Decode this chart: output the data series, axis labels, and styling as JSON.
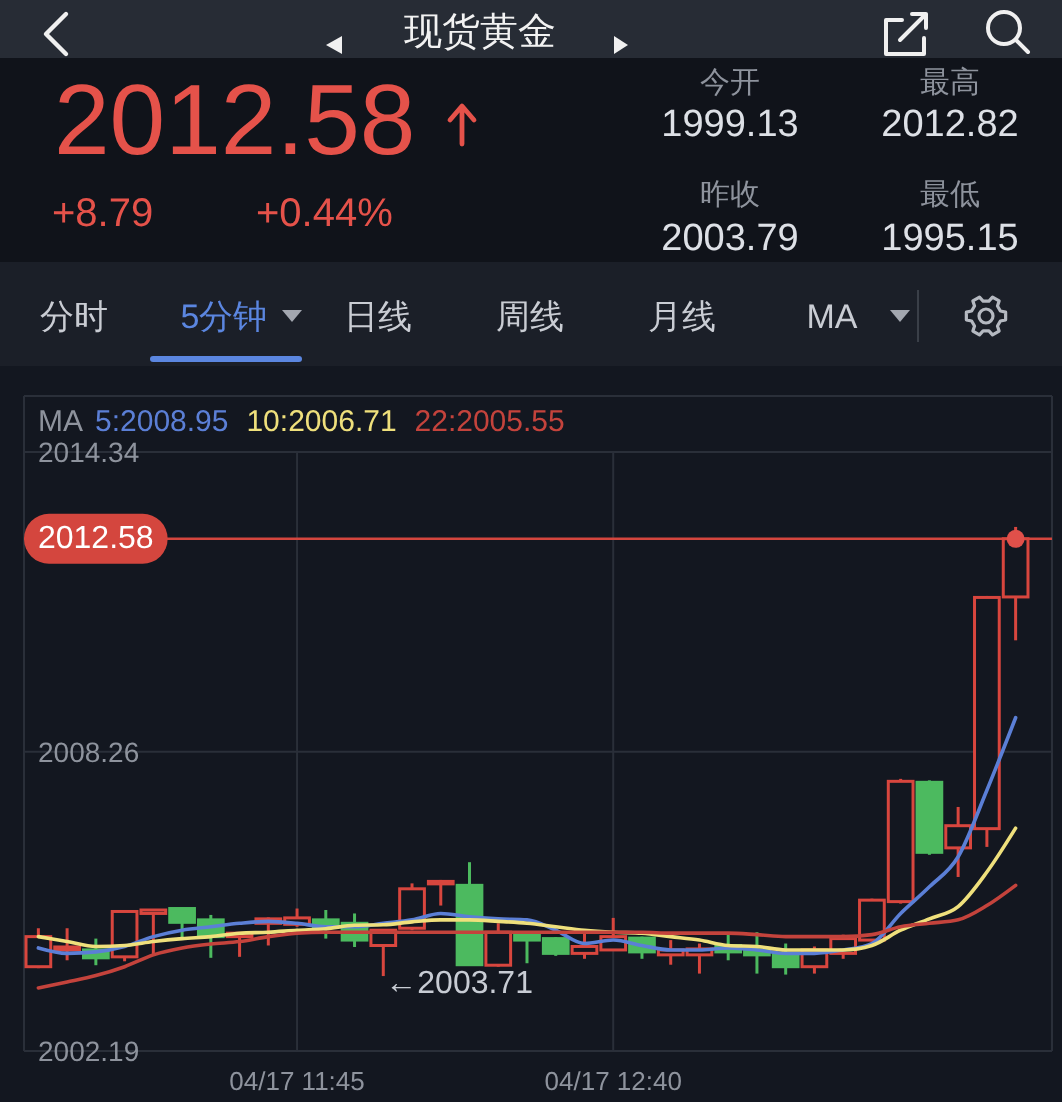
{
  "chart_data": {
    "type": "candlestick",
    "title": "现货黄金",
    "categories": [
      null,
      null,
      null,
      null,
      null,
      null,
      null,
      null,
      null,
      "04/17 11:45",
      null,
      null,
      null,
      null,
      null,
      null,
      null,
      null,
      null,
      null,
      "04/17 12:40",
      null,
      null,
      null,
      null,
      null,
      null,
      null,
      null,
      null,
      null,
      null,
      null,
      null,
      null
    ],
    "ohlc": [
      [
        2003.9,
        2004.68,
        2003.87,
        2004.51
      ],
      [
        2004.24,
        2004.68,
        2004.03,
        2004.3
      ],
      [
        2004.24,
        2004.47,
        2003.93,
        2004.08
      ],
      [
        2004.1,
        2005.05,
        2004.01,
        2005.02
      ],
      [
        2004.98,
        2005.05,
        2004.14,
        2005.05
      ],
      [
        2005.08,
        2005.1,
        2004.44,
        2004.8
      ],
      [
        2004.85,
        2004.95,
        2004.08,
        2004.51
      ],
      [
        2004.51,
        2004.58,
        2004.1,
        2004.58
      ],
      [
        2004.78,
        2004.9,
        2004.33,
        2004.87
      ],
      [
        2004.76,
        2005.08,
        2004.71,
        2004.89
      ],
      [
        2004.85,
        2005.05,
        2004.47,
        2004.71
      ],
      [
        2004.78,
        2004.98,
        2004.3,
        2004.44
      ],
      [
        2004.33,
        2004.64,
        2003.71,
        2004.64
      ],
      [
        2004.68,
        2005.59,
        2004.64,
        2005.48
      ],
      [
        2005.58,
        2005.66,
        2005.14,
        2005.63
      ],
      [
        2005.55,
        2006.02,
        2003.94,
        2003.94
      ],
      [
        2003.93,
        2004.78,
        2003.9,
        2004.6
      ],
      [
        2004.55,
        2004.58,
        2003.97,
        2004.44
      ],
      [
        2004.47,
        2004.5,
        2004.12,
        2004.17
      ],
      [
        2004.17,
        2004.58,
        2004.06,
        2004.31
      ],
      [
        2004.24,
        2004.89,
        2004.24,
        2004.51
      ],
      [
        2004.48,
        2004.51,
        2004.06,
        2004.2
      ],
      [
        2004.14,
        2004.44,
        2003.94,
        2004.24
      ],
      [
        2004.14,
        2004.37,
        2003.76,
        2004.26
      ],
      [
        2004.33,
        2004.58,
        2004.03,
        2004.2
      ],
      [
        2004.24,
        2004.6,
        2003.76,
        2004.14
      ],
      [
        2004.17,
        2004.37,
        2003.74,
        2003.9
      ],
      [
        2003.9,
        2004.31,
        2003.76,
        2004.24
      ],
      [
        2004.17,
        2004.55,
        2004.06,
        2004.47
      ],
      [
        2004.44,
        2005.28,
        2004.41,
        2005.25
      ],
      [
        2005.22,
        2007.71,
        2005.18,
        2007.66
      ],
      [
        2007.64,
        2007.68,
        2006.17,
        2006.22
      ],
      [
        2006.31,
        2007.14,
        2005.72,
        2006.76
      ],
      [
        2006.7,
        2011.42,
        2006.33,
        2011.39
      ],
      [
        2011.4,
        2012.82,
        2010.52,
        2012.58
      ]
    ],
    "colors": [
      "#d8463e",
      "#d8463e",
      "#4cba5f",
      "#d8463e",
      "#d8463e",
      "#4cba5f",
      "#4cba5f",
      "#d8463e",
      "#d8463e",
      "#d8463e",
      "#4cba5f",
      "#4cba5f",
      "#d8463e",
      "#d8463e",
      "#d8463e",
      "#4cba5f",
      "#d8463e",
      "#4cba5f",
      "#4cba5f",
      "#d8463e",
      "#d8463e",
      "#4cba5f",
      "#d8463e",
      "#d8463e",
      "#4cba5f",
      "#4cba5f",
      "#4cba5f",
      "#d8463e",
      "#d8463e",
      "#d8463e",
      "#d8463e",
      "#4cba5f",
      "#d8463e",
      "#d8463e",
      "#d8463e"
    ],
    "series": [
      {
        "type": "line",
        "name": "5:2008.95",
        "color": "#5b7fd6",
        "values": [
          2004.28,
          2004.17,
          2004.2,
          2004.31,
          2004.51,
          2004.64,
          2004.71,
          2004.78,
          2004.82,
          2004.78,
          2004.71,
          2004.71,
          2004.78,
          2004.85,
          2004.98,
          2004.91,
          2004.87,
          2004.85,
          2004.64,
          2004.37,
          2004.44,
          2004.33,
          2004.24,
          2004.24,
          2004.28,
          2004.24,
          2004.17,
          2004.17,
          2004.24,
          2004.37,
          2004.98,
          2005.52,
          2006.13,
          2007.48,
          2008.95
        ]
      },
      {
        "type": "line",
        "name": "10:2006.71",
        "color": "#efe07c",
        "values": [
          2004.51,
          2004.41,
          2004.31,
          2004.33,
          2004.41,
          2004.47,
          2004.51,
          2004.58,
          2004.6,
          2004.64,
          2004.67,
          2004.74,
          2004.75,
          2004.81,
          2004.85,
          2004.85,
          2004.82,
          2004.78,
          2004.71,
          2004.64,
          2004.6,
          2004.58,
          2004.51,
          2004.44,
          2004.33,
          2004.31,
          2004.24,
          2004.24,
          2004.24,
          2004.33,
          2004.64,
          2004.87,
          2005.12,
          2005.82,
          2006.71
        ]
      },
      {
        "type": "line",
        "name": "22:2005.55",
        "color": "#c4433c",
        "values": [
          2003.47,
          2003.59,
          2003.72,
          2003.9,
          2004.14,
          2004.28,
          2004.36,
          2004.41,
          2004.51,
          2004.58,
          2004.6,
          2004.6,
          2004.6,
          2004.6,
          2004.6,
          2004.6,
          2004.6,
          2004.6,
          2004.6,
          2004.6,
          2004.6,
          2004.6,
          2004.58,
          2004.58,
          2004.58,
          2004.55,
          2004.51,
          2004.51,
          2004.51,
          2004.55,
          2004.71,
          2004.78,
          2004.85,
          2005.14,
          2005.55
        ]
      },
      {
        "type": "scatter",
        "color": "#e0504a",
        "marker": "circle",
        "values": [
          null,
          null,
          null,
          null,
          null,
          null,
          null,
          null,
          null,
          null,
          null,
          null,
          null,
          null,
          null,
          null,
          null,
          null,
          null,
          null,
          null,
          null,
          null,
          null,
          null,
          null,
          null,
          null,
          null,
          null,
          null,
          null,
          null,
          null,
          2012.58
        ]
      }
    ],
    "ylim": [
      2002.19,
      2014.34
    ],
    "yticks": [
      2014.34,
      2008.26,
      2002.19
    ],
    "grid": true,
    "legend": "top left",
    "legend_title": "MA",
    "line_style": "solid",
    "ref_lines": [
      {
        "axis": "y",
        "value": 2012.58,
        "label": "2012.58",
        "color": "#d4463e"
      }
    ],
    "annotations": [
      "←2003.71",
      "2012.58",
      "+8.79",
      "+0.44%",
      "今开",
      "1999.13",
      "最高",
      "2012.82",
      "昨收",
      "2003.79",
      "最低",
      "1995.15",
      "分时",
      "5分钟",
      "日线",
      "周线",
      "月线",
      "MA"
    ]
  }
}
